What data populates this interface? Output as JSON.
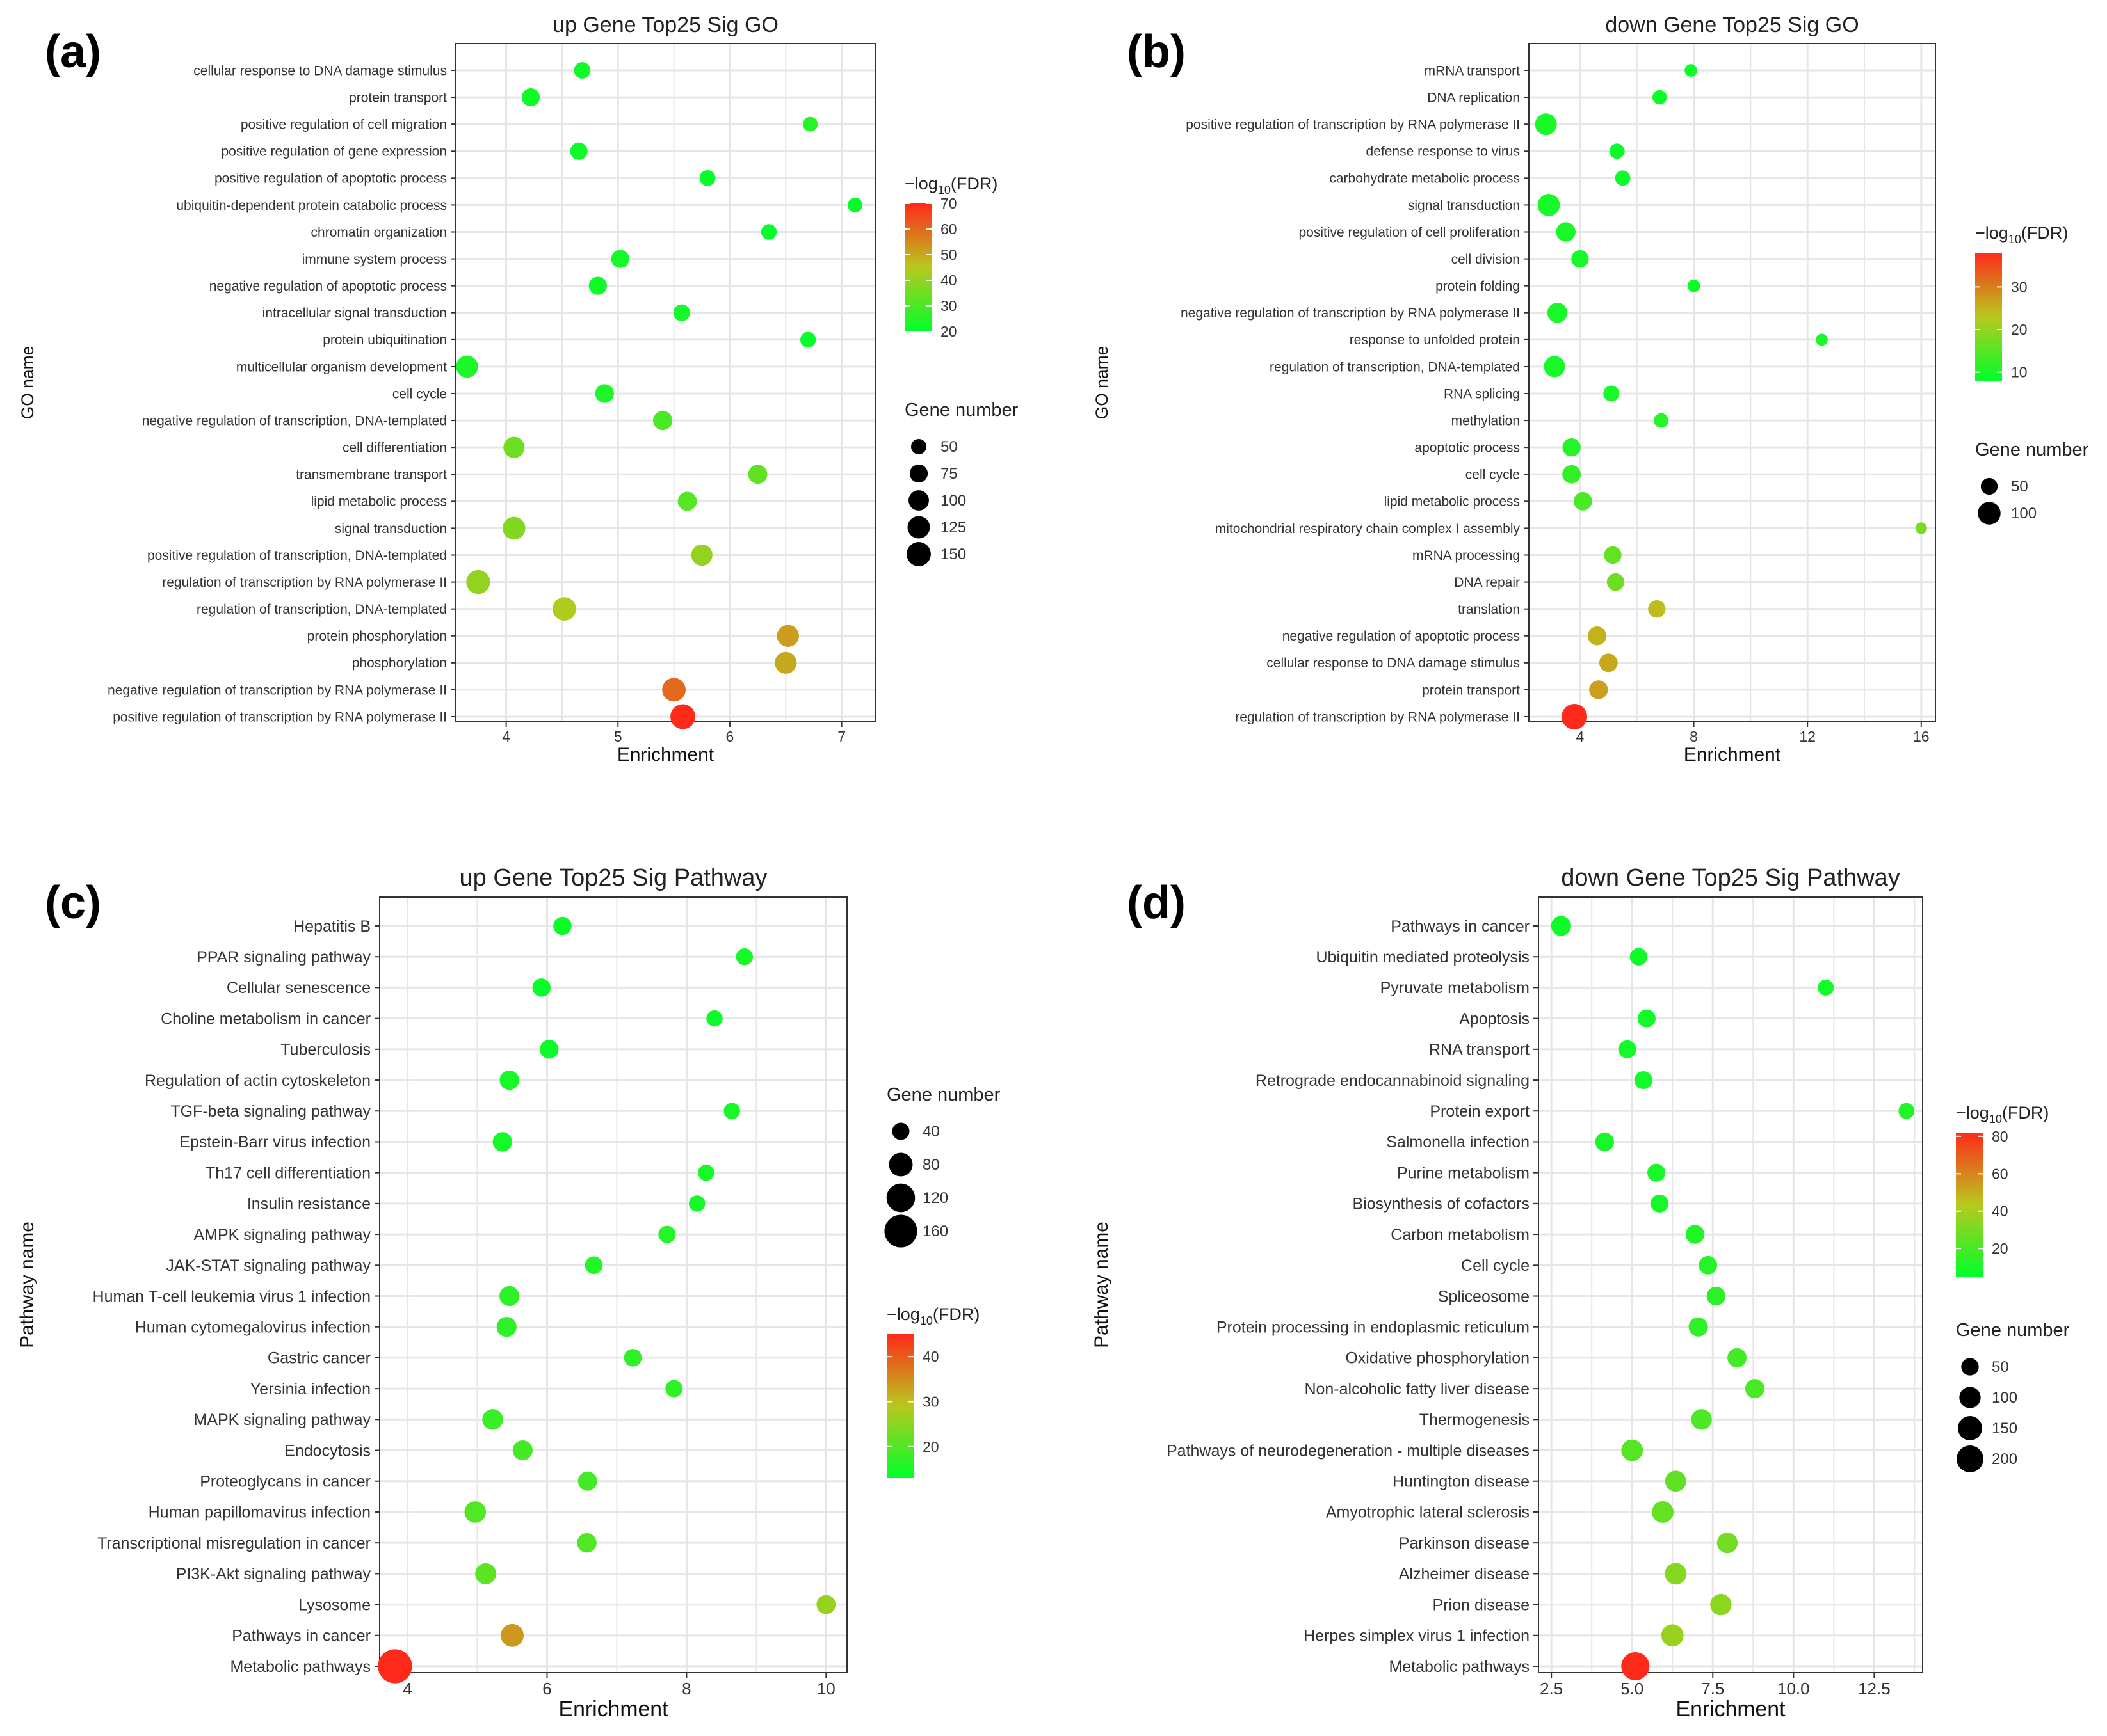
{
  "figure": {
    "size_legend_title": "Gene number",
    "color_legend_title_prefix": "−log",
    "color_legend_title_sub": "10",
    "color_legend_title_suffix": "(FDR)",
    "color_low": "#00ff2a",
    "color_mid": "#b8c81e",
    "color_high": "#ff2a1a",
    "point_stroke": "#0a7a0a"
  },
  "chart_data": [
    {
      "type": "scatter",
      "panel": "(a)",
      "title": "up Gene Top25 Sig GO",
      "xlabel": "Enrichment",
      "ylabel": "GO name",
      "xlim": [
        3.55,
        7.3
      ],
      "xticks": [
        4,
        5,
        6,
        7
      ],
      "fdr_range": [
        20,
        70
      ],
      "fdr_ticks": [
        20,
        30,
        40,
        50,
        60,
        70
      ],
      "gene_range": [
        40,
        170
      ],
      "size_legend": [
        50,
        75,
        100,
        125,
        150
      ],
      "legend_order": "color-first",
      "categories": [
        "cellular response to DNA damage stimulus",
        "protein transport",
        "positive regulation of cell migration",
        "positive regulation of gene expression",
        "positive regulation of apoptotic process",
        "ubiquitin-dependent protein catabolic process",
        "chromatin organization",
        "immune system process",
        "negative regulation of apoptotic process",
        "intracellular signal transduction",
        "protein ubiquitination",
        "multicellular organism development",
        "cell cycle",
        "negative regulation of transcription, DNA-templated",
        "cell differentiation",
        "transmembrane transport",
        "lipid metabolic process",
        "signal transduction",
        "positive regulation of transcription, DNA-templated",
        "regulation of transcription by RNA polymerase II",
        "regulation of transcription, DNA-templated",
        "protein phosphorylation",
        "phosphorylation",
        "negative regulation of transcription by RNA polymerase II",
        "positive regulation of transcription by RNA polymerase II"
      ],
      "enrichment": [
        4.68,
        4.22,
        6.72,
        4.65,
        5.8,
        7.12,
        6.35,
        5.02,
        4.82,
        5.57,
        6.7,
        3.65,
        4.88,
        5.4,
        4.07,
        6.25,
        5.62,
        4.07,
        5.75,
        3.75,
        4.52,
        6.52,
        6.5,
        5.5,
        5.58
      ],
      "gene_number": [
        60,
        75,
        45,
        68,
        55,
        45,
        52,
        75,
        75,
        62,
        52,
        120,
        82,
        88,
        110,
        85,
        85,
        130,
        110,
        145,
        140,
        120,
        118,
        140,
        160
      ],
      "fdr": [
        22,
        22,
        25,
        22,
        21,
        21,
        21,
        23,
        22,
        23,
        21,
        24,
        24,
        30,
        35,
        33,
        32,
        38,
        40,
        40,
        44,
        52,
        50,
        60,
        70
      ]
    },
    {
      "type": "scatter",
      "panel": "(b)",
      "title": "down Gene Top25 Sig GO",
      "xlabel": "Enrichment",
      "ylabel": "GO name",
      "xlim": [
        2.2,
        16.5
      ],
      "xticks": [
        4,
        8,
        12,
        16
      ],
      "fdr_range": [
        8,
        38
      ],
      "fdr_ticks": [
        10,
        20,
        30
      ],
      "gene_range": [
        20,
        130
      ],
      "size_legend": [
        50,
        100
      ],
      "legend_order": "color-first",
      "categories": [
        "mRNA transport",
        "DNA replication",
        "positive regulation of transcription by RNA polymerase II",
        "defense response to virus",
        "carbohydrate metabolic process",
        "signal transduction",
        "positive regulation of cell proliferation",
        "cell division",
        "protein folding",
        "negative regulation of transcription by RNA polymerase II",
        "response to unfolded protein",
        "regulation of transcription, DNA-templated",
        "RNA splicing",
        "methylation",
        "apoptotic process",
        "cell cycle",
        "lipid metabolic process",
        "mitochondrial respiratory chain complex I assembly",
        "mRNA processing",
        "DNA repair",
        "translation",
        "negative regulation of apoptotic process",
        "cellular response to DNA damage stimulus",
        "protein transport",
        "regulation of transcription by RNA polymerase II"
      ],
      "enrichment": [
        7.9,
        6.8,
        2.8,
        5.3,
        5.5,
        2.9,
        3.5,
        4.0,
        8.0,
        3.2,
        12.5,
        3.1,
        5.1,
        6.85,
        3.7,
        3.7,
        4.1,
        16.0,
        5.15,
        5.25,
        6.7,
        4.6,
        5.0,
        4.65,
        3.8
      ],
      "gene_number": [
        25,
        35,
        90,
        40,
        40,
        95,
        70,
        55,
        25,
        75,
        22,
        85,
        45,
        35,
        60,
        62,
        62,
        20,
        55,
        55,
        55,
        65,
        62,
        65,
        130
      ],
      "fdr": [
        9,
        9,
        10,
        9,
        9,
        10,
        10,
        10,
        9,
        10,
        10,
        10,
        10,
        11,
        11,
        12,
        14,
        18,
        16,
        17,
        24,
        25,
        26,
        27,
        38
      ]
    },
    {
      "type": "scatter",
      "panel": "(c)",
      "title": "up Gene Top25 Sig Pathway",
      "xlabel": "Enrichment",
      "ylabel": "Pathway name",
      "xlim": [
        3.6,
        10.3
      ],
      "xticks": [
        4,
        6,
        8,
        10
      ],
      "fdr_range": [
        13,
        45
      ],
      "fdr_ticks": [
        20,
        30,
        40
      ],
      "gene_range": [
        20,
        180
      ],
      "size_legend": [
        40,
        80,
        120,
        160
      ],
      "legend_order": "size-first",
      "categories": [
        "Hepatitis B",
        "PPAR signaling pathway",
        "Cellular senescence",
        "Choline metabolism in cancer",
        "Tuberculosis",
        "Regulation of actin cytoskeleton",
        "TGF-beta signaling pathway",
        "Epstein-Barr virus infection",
        "Th17 cell differentiation",
        "Insulin resistance",
        "AMPK signaling pathway",
        "JAK-STAT signaling pathway",
        "Human T-cell leukemia virus 1 infection",
        "Human cytomegalovirus infection",
        "Gastric cancer",
        "Yersinia infection",
        "MAPK signaling pathway",
        "Endocytosis",
        "Proteoglycans in cancer",
        "Human papillomavirus infection",
        "Transcriptional misregulation in cancer",
        "PI3K-Akt signaling pathway",
        "Lysosome",
        "Pathways in cancer",
        "Metabolic pathways"
      ],
      "enrichment": [
        6.22,
        8.83,
        5.92,
        8.4,
        6.03,
        5.46,
        8.65,
        5.36,
        8.28,
        8.15,
        7.72,
        6.67,
        5.46,
        5.42,
        7.23,
        7.82,
        5.22,
        5.65,
        6.58,
        4.97,
        6.57,
        5.12,
        10.0,
        5.5,
        3.82
      ],
      "gene_number": [
        45,
        38,
        45,
        35,
        48,
        52,
        35,
        52,
        35,
        35,
        40,
        42,
        55,
        55,
        42,
        40,
        60,
        55,
        50,
        65,
        52,
        62,
        50,
        75,
        175
      ],
      "fdr": [
        14,
        15,
        14,
        14,
        14,
        15,
        15,
        15,
        15,
        15,
        16,
        16,
        17,
        17,
        17,
        17,
        18,
        19,
        19,
        20,
        20,
        21,
        26,
        34,
        45
      ]
    },
    {
      "type": "scatter",
      "panel": "(d)",
      "title": "down Gene Top25 Sig Pathway",
      "xlabel": "Enrichment",
      "ylabel": "Pathway name",
      "xlim": [
        2.1,
        14.0
      ],
      "xticks": [
        2.5,
        5.0,
        7.5,
        10.0,
        12.5
      ],
      "xtick_labels": [
        "2.5",
        "5.0",
        "7.5",
        "10.0",
        "12.5"
      ],
      "fdr_range": [
        5,
        82
      ],
      "fdr_ticks": [
        20,
        40,
        60,
        80
      ],
      "gene_range": [
        20,
        230
      ],
      "size_legend": [
        50,
        100,
        150,
        200
      ],
      "legend_order": "color-first",
      "categories": [
        "Pathways in cancer",
        "Ubiquitin mediated proteolysis",
        "Pyruvate metabolism",
        "Apoptosis",
        "RNA transport",
        "Retrograde endocannabinoid signaling",
        "Protein export",
        "Salmonella infection",
        "Purine metabolism",
        "Biosynthesis of cofactors",
        "Carbon metabolism",
        "Cell cycle",
        "Spliceosome",
        "Protein processing in endoplasmic reticulum",
        "Oxidative phosphorylation",
        "Non-alcoholic fatty liver disease",
        "Thermogenesis",
        "Pathways of neurodegeneration - multiple diseases",
        "Huntington disease",
        "Amyotrophic lateral sclerosis",
        "Parkinson disease",
        "Alzheimer disease",
        "Prion disease",
        "Herpes simplex virus 1 infection",
        "Metabolic pathways"
      ],
      "enrichment": [
        2.8,
        5.2,
        11.0,
        5.45,
        4.85,
        5.35,
        13.5,
        4.15,
        5.75,
        5.85,
        6.95,
        7.35,
        7.6,
        7.05,
        8.25,
        8.8,
        7.15,
        5.0,
        6.35,
        5.95,
        7.95,
        6.35,
        7.75,
        6.25,
        5.1
      ],
      "gene_number": [
        80,
        50,
        35,
        55,
        55,
        55,
        35,
        65,
        55,
        55,
        65,
        60,
        65,
        70,
        70,
        70,
        90,
        105,
        95,
        105,
        90,
        105,
        100,
        115,
        230
      ],
      "fdr": [
        8,
        8,
        9,
        9,
        9,
        9,
        12,
        10,
        10,
        10,
        12,
        13,
        14,
        15,
        19,
        20,
        21,
        23,
        25,
        26,
        29,
        33,
        34,
        37,
        82
      ]
    }
  ]
}
